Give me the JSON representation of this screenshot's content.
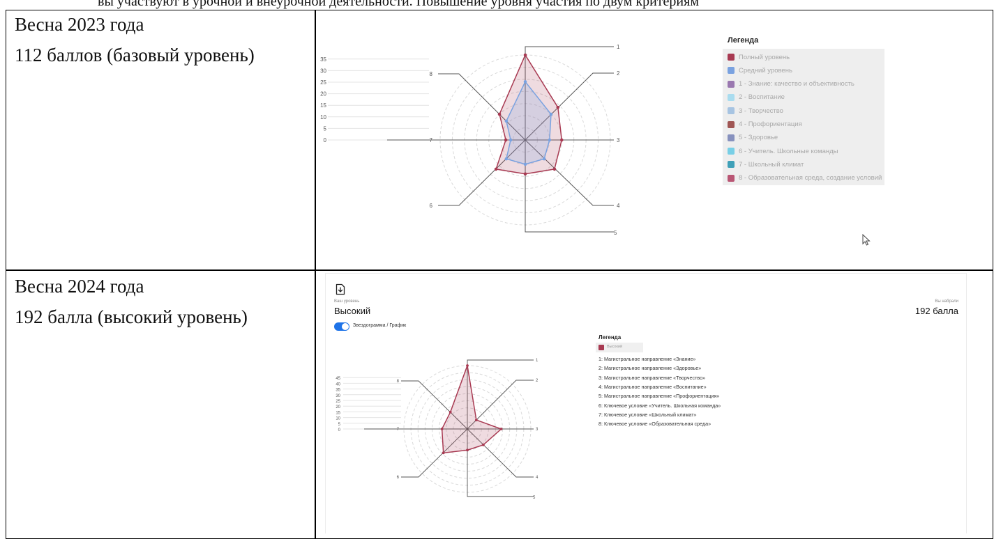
{
  "top_partial_text": "вы участвуют в урочной и внеурочной деятельности. Повышение уровня участия по двум критериям",
  "rows": [
    {
      "period": "Весна 2023 года",
      "score": "112 баллов (базовый уровень)"
    },
    {
      "period": "Весна 2024 года",
      "score": "192 балла (высокий уровень)"
    }
  ],
  "panel1": {
    "legend_title": "Легенда",
    "legend_items": [
      {
        "label": "Полный уровень",
        "color": "#a83a52"
      },
      {
        "label": "Средний уровень",
        "color": "#7aa2e0"
      },
      {
        "label": "1 - Знание: качество и объективность",
        "color": "#9a78b0"
      },
      {
        "label": "2 - Воспитание",
        "color": "#a9dcef"
      },
      {
        "label": "3 - Творчество",
        "color": "#a7c4e2"
      },
      {
        "label": "4 - Профориентация",
        "color": "#a05654"
      },
      {
        "label": "5 - Здоровье",
        "color": "#8791be"
      },
      {
        "label": "6 - Учитель. Школьные команды",
        "color": "#78cfe6"
      },
      {
        "label": "7 - Школьный климат",
        "color": "#3fa0b8"
      },
      {
        "label": "8 - Образовательная среда, создание условий",
        "color": "#b95674"
      }
    ]
  },
  "panel2": {
    "level_caption": "Ваш уровень",
    "level_value": "Высокий",
    "score_caption": "Вы набрали",
    "score_value": "192 балла",
    "toggle_label": "Звездограмма / График",
    "legend_title": "Легенда",
    "legend_badge": "Высокий",
    "legend_badge_color": "#a83a52",
    "legend_items": [
      "1: Магистральное направление «Знание»",
      "2: Магистральное направление «Здоровье»",
      "3: Магистральное направление «Творчество»",
      "4: Магистральное направление «Воспитание»",
      "5: Магистральное направление «Профориентация»",
      "6: Ключевое условие «Учитель. Школьная команда»",
      "7: Ключевое условие «Школьный климат»",
      "8: Ключевое условие «Образовательная среда»"
    ]
  },
  "chart_data": [
    {
      "type": "radar",
      "axes": [
        "1",
        "2",
        "3",
        "4",
        "5",
        "6",
        "7",
        "8"
      ],
      "scale_ticks": [
        "0",
        "5",
        "10",
        "15",
        "20",
        "25",
        "30",
        "35"
      ],
      "rmax": 35,
      "series": [
        {
          "name": "Полный уровень",
          "color": "#a83a52",
          "values": [
            35,
            19,
            15,
            17,
            14,
            17,
            8,
            15
          ]
        },
        {
          "name": "Средний уровень",
          "color": "#7aa2e0",
          "values": [
            24,
            15,
            10,
            11,
            10,
            11,
            6,
            11
          ]
        }
      ]
    },
    {
      "type": "radar",
      "axes": [
        "1",
        "2",
        "3",
        "4",
        "5",
        "6",
        "7",
        "8"
      ],
      "scale_ticks": [
        "0",
        "5",
        "10",
        "15",
        "20",
        "25",
        "30",
        "35",
        "40",
        "45"
      ],
      "rmax": 45,
      "series": [
        {
          "name": "Высокий",
          "color": "#a83a52",
          "values": [
            45,
            9,
            24,
            16,
            15,
            24,
            18,
            17
          ]
        }
      ]
    }
  ]
}
